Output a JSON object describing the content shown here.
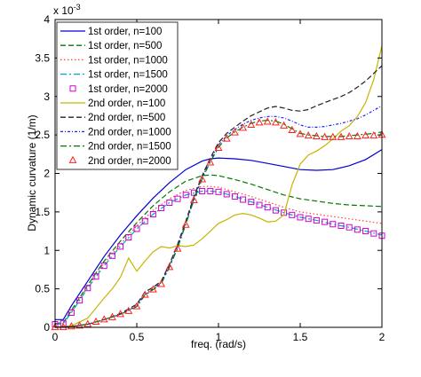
{
  "chart_data": {
    "type": "line",
    "xlabel": "freq. (rad/s)",
    "ylabel": "Dynamic curvature (1/m)",
    "y_exponent_label": "x 10",
    "y_exponent_power": "-3",
    "xlim": [
      0,
      2
    ],
    "ylim": [
      0,
      4
    ],
    "xticks": [
      0,
      0.5,
      1,
      1.5,
      2
    ],
    "xtick_labels": [
      "0",
      "0.5",
      "1",
      "1.5",
      "2"
    ],
    "yticks": [
      0,
      0.5,
      1,
      1.5,
      2,
      2.5,
      3,
      3.5,
      4
    ],
    "ytick_labels": [
      "0",
      "0.5",
      "1",
      "1.5",
      "2",
      "2.5",
      "3",
      "3.5",
      "4"
    ],
    "grid": false,
    "legend_position": "top-left",
    "series": [
      {
        "name": "1st order, n=100",
        "color": "#0000d0",
        "style": "solid",
        "marker": "none",
        "x": [
          0,
          0.05,
          0.1,
          0.2,
          0.3,
          0.4,
          0.5,
          0.6,
          0.7,
          0.8,
          0.9,
          0.95,
          1.0,
          1.1,
          1.2,
          1.3,
          1.4,
          1.5,
          1.6,
          1.7,
          1.8,
          1.9,
          2.0
        ],
        "y": [
          0.1,
          0.1,
          0.28,
          0.6,
          0.92,
          1.2,
          1.45,
          1.68,
          1.88,
          2.05,
          2.16,
          2.19,
          2.2,
          2.19,
          2.17,
          2.13,
          2.09,
          2.05,
          2.04,
          2.05,
          2.1,
          2.18,
          2.31
        ]
      },
      {
        "name": "1st order, n=500",
        "color": "#007a00",
        "style": "dashed",
        "marker": "none",
        "x": [
          0,
          0.05,
          0.1,
          0.2,
          0.3,
          0.4,
          0.5,
          0.6,
          0.7,
          0.8,
          0.9,
          0.95,
          1.0,
          1.1,
          1.2,
          1.3,
          1.4,
          1.5,
          1.6,
          1.7,
          1.8,
          1.9,
          2.0
        ],
        "y": [
          0.05,
          0.06,
          0.22,
          0.55,
          0.86,
          1.12,
          1.36,
          1.58,
          1.76,
          1.9,
          1.97,
          1.98,
          1.97,
          1.92,
          1.86,
          1.79,
          1.72,
          1.67,
          1.64,
          1.61,
          1.59,
          1.58,
          1.57
        ]
      },
      {
        "name": "1st order, n=1000",
        "color": "#ff4040",
        "style": "dotted",
        "marker": "none",
        "x": [
          0,
          0.05,
          0.1,
          0.2,
          0.3,
          0.4,
          0.5,
          0.6,
          0.7,
          0.8,
          0.9,
          0.95,
          1.0,
          1.1,
          1.2,
          1.3,
          1.4,
          1.5,
          1.6,
          1.7,
          1.8,
          1.9,
          2.0
        ],
        "y": [
          0.04,
          0.05,
          0.2,
          0.53,
          0.83,
          1.08,
          1.32,
          1.52,
          1.67,
          1.78,
          1.83,
          1.83,
          1.82,
          1.76,
          1.7,
          1.63,
          1.56,
          1.5,
          1.47,
          1.44,
          1.41,
          1.38,
          1.35
        ]
      },
      {
        "name": "1st order, n=1500",
        "color": "#00a8c8",
        "style": "dashdot",
        "marker": "none",
        "x": [
          0,
          0.05,
          0.1,
          0.2,
          0.3,
          0.4,
          0.5,
          0.6,
          0.7,
          0.8,
          0.9,
          0.95,
          1.0,
          1.1,
          1.2,
          1.3,
          1.4,
          1.5,
          1.6,
          1.7,
          1.8,
          1.9,
          2.0
        ],
        "y": [
          0.04,
          0.05,
          0.19,
          0.51,
          0.8,
          1.05,
          1.28,
          1.47,
          1.62,
          1.72,
          1.77,
          1.77,
          1.76,
          1.7,
          1.63,
          1.56,
          1.49,
          1.43,
          1.39,
          1.34,
          1.3,
          1.25,
          1.2
        ]
      },
      {
        "name": "1st order, n=2000",
        "color": "#d000d0",
        "style": "none",
        "marker": "square",
        "x": [
          0,
          0.05,
          0.1,
          0.15,
          0.2,
          0.25,
          0.3,
          0.35,
          0.4,
          0.45,
          0.5,
          0.55,
          0.6,
          0.65,
          0.7,
          0.75,
          0.8,
          0.85,
          0.9,
          0.95,
          1.0,
          1.05,
          1.1,
          1.15,
          1.2,
          1.25,
          1.3,
          1.35,
          1.4,
          1.45,
          1.5,
          1.55,
          1.6,
          1.65,
          1.7,
          1.75,
          1.8,
          1.85,
          1.9,
          1.95,
          2.0
        ],
        "y": [
          0.04,
          0.05,
          0.19,
          0.35,
          0.51,
          0.66,
          0.8,
          0.93,
          1.05,
          1.17,
          1.28,
          1.38,
          1.47,
          1.55,
          1.62,
          1.67,
          1.72,
          1.75,
          1.77,
          1.77,
          1.76,
          1.73,
          1.7,
          1.66,
          1.63,
          1.59,
          1.56,
          1.52,
          1.49,
          1.46,
          1.43,
          1.41,
          1.39,
          1.37,
          1.34,
          1.32,
          1.3,
          1.27,
          1.25,
          1.22,
          1.19
        ]
      },
      {
        "name": "2nd order, n=100",
        "color": "#c8b400",
        "style": "solid",
        "marker": "none",
        "x": [
          0,
          0.1,
          0.2,
          0.3,
          0.35,
          0.4,
          0.45,
          0.5,
          0.55,
          0.6,
          0.65,
          0.7,
          0.75,
          0.8,
          0.85,
          0.9,
          0.95,
          1.0,
          1.05,
          1.1,
          1.15,
          1.2,
          1.25,
          1.3,
          1.35,
          1.4,
          1.45,
          1.5,
          1.55,
          1.6,
          1.65,
          1.7,
          1.75,
          1.8,
          1.85,
          1.9,
          1.95,
          2.0
        ],
        "y": [
          0,
          0.02,
          0.12,
          0.38,
          0.5,
          0.65,
          0.9,
          0.73,
          0.86,
          0.98,
          1.05,
          1.03,
          1.06,
          1.05,
          1.07,
          1.15,
          1.25,
          1.35,
          1.4,
          1.46,
          1.48,
          1.46,
          1.42,
          1.37,
          1.38,
          1.46,
          1.85,
          2.12,
          2.24,
          2.29,
          2.36,
          2.45,
          2.55,
          2.62,
          2.74,
          2.92,
          3.22,
          3.66
        ]
      },
      {
        "name": "2nd order, n=500",
        "color": "#202020",
        "style": "dashed",
        "marker": "none",
        "x": [
          0,
          0.1,
          0.2,
          0.3,
          0.4,
          0.5,
          0.55,
          0.6,
          0.65,
          0.7,
          0.75,
          0.8,
          0.85,
          0.9,
          0.95,
          1.0,
          1.05,
          1.1,
          1.15,
          1.2,
          1.25,
          1.3,
          1.35,
          1.4,
          1.45,
          1.5,
          1.55,
          1.6,
          1.65,
          1.7,
          1.75,
          1.8,
          1.85,
          1.9,
          1.95,
          2.0
        ],
        "y": [
          0,
          0.01,
          0.04,
          0.1,
          0.18,
          0.3,
          0.46,
          0.52,
          0.6,
          0.82,
          1.08,
          1.38,
          1.7,
          1.97,
          2.2,
          2.4,
          2.52,
          2.6,
          2.68,
          2.75,
          2.8,
          2.85,
          2.87,
          2.85,
          2.82,
          2.81,
          2.83,
          2.88,
          2.92,
          2.96,
          3.0,
          3.05,
          3.12,
          3.2,
          3.3,
          3.4
        ]
      },
      {
        "name": "2nd order, n=1000",
        "color": "#2020ff",
        "style": "dashdot-dense",
        "marker": "none",
        "x": [
          0,
          0.1,
          0.2,
          0.3,
          0.4,
          0.5,
          0.55,
          0.6,
          0.65,
          0.7,
          0.75,
          0.8,
          0.85,
          0.9,
          0.95,
          1.0,
          1.05,
          1.1,
          1.15,
          1.2,
          1.25,
          1.3,
          1.35,
          1.4,
          1.45,
          1.5,
          1.55,
          1.6,
          1.65,
          1.7,
          1.75,
          1.8,
          1.85,
          1.9,
          1.95,
          2.0
        ],
        "y": [
          0,
          0.01,
          0.04,
          0.1,
          0.17,
          0.28,
          0.43,
          0.5,
          0.58,
          0.8,
          1.05,
          1.36,
          1.68,
          1.95,
          2.17,
          2.37,
          2.49,
          2.57,
          2.64,
          2.69,
          2.72,
          2.74,
          2.74,
          2.72,
          2.68,
          2.63,
          2.6,
          2.6,
          2.61,
          2.63,
          2.65,
          2.68,
          2.71,
          2.76,
          2.82,
          2.88
        ]
      },
      {
        "name": "2nd order, n=1500",
        "color": "#007a00",
        "style": "dashdot",
        "marker": "none",
        "x": [
          0,
          0.1,
          0.2,
          0.3,
          0.4,
          0.5,
          0.55,
          0.6,
          0.65,
          0.7,
          0.75,
          0.8,
          0.85,
          0.9,
          0.95,
          1.0,
          1.05,
          1.1,
          1.15,
          1.2,
          1.25,
          1.3,
          1.35,
          1.4,
          1.45,
          1.5,
          1.55,
          1.6,
          1.65,
          1.7,
          1.75,
          1.8,
          1.85,
          1.9,
          1.95,
          2.0
        ],
        "y": [
          0,
          0.01,
          0.04,
          0.1,
          0.17,
          0.27,
          0.42,
          0.49,
          0.57,
          0.78,
          1.03,
          1.34,
          1.66,
          1.93,
          2.15,
          2.34,
          2.46,
          2.54,
          2.6,
          2.65,
          2.68,
          2.69,
          2.68,
          2.64,
          2.58,
          2.52,
          2.5,
          2.49,
          2.48,
          2.48,
          2.48,
          2.49,
          2.5,
          2.51,
          2.52,
          2.54
        ]
      },
      {
        "name": "2nd order, n=2000",
        "color": "#ff2020",
        "style": "none",
        "marker": "triangle",
        "x": [
          0,
          0.05,
          0.1,
          0.15,
          0.2,
          0.25,
          0.3,
          0.35,
          0.4,
          0.45,
          0.5,
          0.55,
          0.6,
          0.65,
          0.7,
          0.75,
          0.8,
          0.85,
          0.9,
          0.95,
          1.0,
          1.05,
          1.1,
          1.15,
          1.2,
          1.25,
          1.3,
          1.35,
          1.4,
          1.45,
          1.5,
          1.55,
          1.6,
          1.65,
          1.7,
          1.75,
          1.8,
          1.85,
          1.9,
          1.95,
          2.0
        ],
        "y": [
          0,
          0,
          0.01,
          0.02,
          0.04,
          0.07,
          0.1,
          0.13,
          0.17,
          0.21,
          0.27,
          0.42,
          0.49,
          0.56,
          0.78,
          1.02,
          1.33,
          1.65,
          1.92,
          2.14,
          2.33,
          2.45,
          2.53,
          2.59,
          2.63,
          2.66,
          2.67,
          2.66,
          2.62,
          2.56,
          2.51,
          2.49,
          2.48,
          2.47,
          2.47,
          2.47,
          2.48,
          2.48,
          2.49,
          2.49,
          2.5
        ]
      }
    ]
  }
}
